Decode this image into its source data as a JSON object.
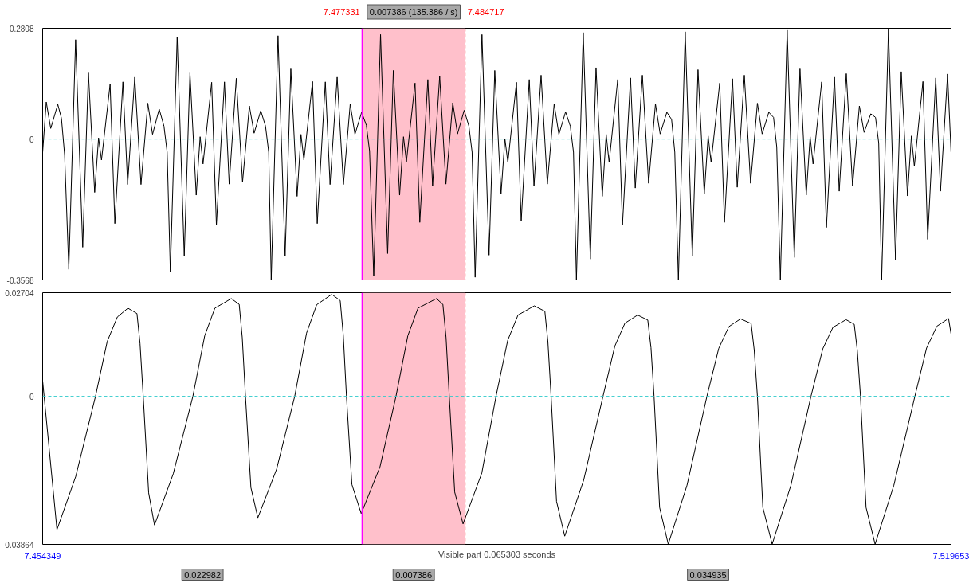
{
  "chart_data": [
    {
      "type": "line",
      "xlim": [
        7.454349,
        7.519653
      ],
      "ylim": [
        -0.3568,
        0.2808
      ],
      "yticks": [
        0.2808,
        0,
        -0.3568
      ],
      "tick_labels": "y",
      "grid": false,
      "x": [
        7.45435,
        7.45461,
        7.45493,
        7.45544,
        7.4557,
        7.45593,
        7.45623,
        7.45672,
        7.45723,
        7.45764,
        7.45809,
        7.45837,
        7.45858,
        7.4592,
        7.45954,
        7.46012,
        7.46046,
        7.46097,
        7.46142,
        7.46191,
        7.46225,
        7.46273,
        7.46307,
        7.4633,
        7.46353,
        7.46402,
        7.46453,
        7.46494,
        7.46539,
        7.46567,
        7.46588,
        7.4665,
        7.46684,
        7.46742,
        7.46776,
        7.46827,
        7.46872,
        7.46921,
        7.46955,
        7.47003,
        7.47037,
        7.4706,
        7.47078,
        7.47127,
        7.47178,
        7.47219,
        7.47264,
        7.47292,
        7.47313,
        7.47375,
        7.47409,
        7.47467,
        7.47501,
        7.47552,
        7.47597,
        7.47646,
        7.4768,
        7.47728,
        7.47762,
        7.47785,
        7.47815,
        7.47864,
        7.47915,
        7.47956,
        7.48001,
        7.48029,
        7.4805,
        7.48112,
        7.48146,
        7.48204,
        7.48238,
        7.48289,
        7.48334,
        7.48383,
        7.48417,
        7.48465,
        7.48499,
        7.48522,
        7.48544,
        7.48593,
        7.48644,
        7.48685,
        7.4873,
        7.48758,
        7.48779,
        7.48841,
        7.48875,
        7.48933,
        7.48967,
        7.49018,
        7.49063,
        7.49112,
        7.49146,
        7.49194,
        7.49228,
        7.49251,
        7.49272,
        7.49321,
        7.49372,
        7.49413,
        7.49458,
        7.49486,
        7.49507,
        7.49569,
        7.49603,
        7.49661,
        7.49695,
        7.49746,
        7.49791,
        7.4984,
        7.49874,
        7.49922,
        7.49956,
        7.49979,
        7.50005,
        7.50054,
        7.50105,
        7.50146,
        7.50191,
        7.50219,
        7.5024,
        7.50302,
        7.50336,
        7.50394,
        7.50428,
        7.50479,
        7.50524,
        7.50573,
        7.50607,
        7.50655,
        7.50689,
        7.50712,
        7.50738,
        7.50787,
        7.50838,
        7.50879,
        7.50924,
        7.50952,
        7.50973,
        7.51035,
        7.51069,
        7.51127,
        7.51161,
        7.51212,
        7.51257,
        7.51306,
        7.5134,
        7.51388,
        7.51422,
        7.51445,
        7.51466,
        7.51515,
        7.51566,
        7.51607,
        7.51652,
        7.5168,
        7.51701,
        7.51763,
        7.51797,
        7.51855,
        7.51889,
        7.5194,
        7.51965
      ],
      "series": [
        {
          "color": "#000000",
          "values": [
            -0.033,
            0.094,
            0.027,
            0.088,
            0.053,
            -0.04,
            -0.33,
            0.252,
            -0.274,
            0.168,
            -0.135,
            0.003,
            -0.053,
            0.139,
            -0.214,
            0.145,
            -0.115,
            0.157,
            -0.115,
            0.091,
            0.012,
            0.076,
            0.033,
            -0.033,
            -0.337,
            0.259,
            -0.296,
            0.168,
            -0.142,
            0.006,
            -0.063,
            0.144,
            -0.218,
            0.145,
            -0.114,
            0.154,
            -0.109,
            0.084,
            0.015,
            0.072,
            0.033,
            -0.033,
            -0.356,
            0.262,
            -0.297,
            0.178,
            -0.145,
            0.012,
            -0.053,
            0.146,
            -0.214,
            0.145,
            -0.115,
            0.157,
            -0.115,
            0.089,
            0.012,
            0.068,
            0.035,
            -0.03,
            -0.347,
            0.265,
            -0.29,
            0.174,
            -0.142,
            0.006,
            -0.057,
            0.142,
            -0.211,
            0.151,
            -0.118,
            0.159,
            -0.114,
            0.092,
            0.013,
            0.073,
            0.033,
            -0.033,
            -0.35,
            0.265,
            -0.294,
            0.174,
            -0.139,
            0.001,
            -0.059,
            0.144,
            -0.208,
            0.151,
            -0.119,
            0.162,
            -0.114,
            0.089,
            0.012,
            0.069,
            0.033,
            -0.033,
            -0.356,
            0.27,
            -0.304,
            0.181,
            -0.145,
            0.012,
            -0.059,
            0.151,
            -0.218,
            0.155,
            -0.124,
            0.162,
            -0.112,
            0.089,
            0.013,
            0.068,
            0.05,
            -0.033,
            -0.356,
            0.272,
            -0.297,
            0.176,
            -0.139,
            0.008,
            -0.059,
            0.142,
            -0.211,
            0.153,
            -0.122,
            0.162,
            -0.112,
            0.091,
            0.013,
            0.068,
            0.055,
            -0.02,
            -0.356,
            0.276,
            -0.3,
            0.178,
            -0.142,
            0.006,
            -0.063,
            0.145,
            -0.224,
            0.157,
            -0.132,
            0.166,
            -0.119,
            0.084,
            0.017,
            0.064,
            0.055,
            -0.01,
            -0.356,
            0.279,
            -0.307,
            0.171,
            -0.144,
            0.008,
            -0.069,
            0.146,
            -0.254,
            0.155,
            -0.132,
            0.165,
            -0.033
          ]
        }
      ],
      "bands": [
        {
          "axis": "x",
          "from": 7.477331,
          "to": 7.484717,
          "label": "0.007386 (135.386 / s)",
          "color": "#ffc0cb"
        }
      ],
      "ref_lines": [
        {
          "axis": "x",
          "value": 7.477331,
          "label": "7.477331",
          "color": "#ff00ff",
          "line_style": "solid"
        },
        {
          "axis": "x",
          "value": 7.484717,
          "label": "7.484717",
          "color": "#ff0000",
          "line_style": "dashed"
        },
        {
          "axis": "y",
          "value": 0,
          "color": "#33cccc",
          "line_style": "dashed"
        }
      ]
    },
    {
      "type": "line",
      "xlim": [
        7.454349,
        7.519653
      ],
      "xticks": [
        7.454349,
        7.519653
      ],
      "xlabel": "Visible part 0.065303 seconds",
      "ylim": [
        -0.03864,
        0.02704
      ],
      "yticks": [
        0.02704,
        0,
        -0.03864
      ],
      "grid": false,
      "x": [
        7.45435,
        7.45538,
        7.45673,
        7.45815,
        7.45899,
        7.45972,
        7.46048,
        7.46113,
        7.46135,
        7.46158,
        7.46197,
        7.46239,
        7.46374,
        7.46515,
        7.466,
        7.46673,
        7.46791,
        7.46848,
        7.4687,
        7.46893,
        7.46932,
        7.46982,
        7.47117,
        7.47247,
        7.47332,
        7.47405,
        7.47513,
        7.47574,
        7.47596,
        7.47619,
        7.47658,
        7.47725,
        7.4786,
        7.47975,
        7.4806,
        7.48133,
        7.48266,
        7.48312,
        7.48335,
        7.48358,
        7.48397,
        7.48457,
        7.48592,
        7.48694,
        7.48778,
        7.48852,
        7.48969,
        7.49045,
        7.49067,
        7.4909,
        7.49129,
        7.49188,
        7.49324,
        7.49463,
        7.49548,
        7.49621,
        7.49712,
        7.49785,
        7.49808,
        7.4983,
        7.4987,
        7.49932,
        7.50067,
        7.5021,
        7.50295,
        7.50368,
        7.50452,
        7.50528,
        7.5055,
        7.50573,
        7.50612,
        7.50679,
        7.50814,
        7.50958,
        7.51043,
        7.51116,
        7.5121,
        7.51269,
        7.51291,
        7.51314,
        7.51354,
        7.51419,
        7.51554,
        7.51705,
        7.51789,
        7.51863,
        7.51947,
        7.51965
      ],
      "series": [
        {
          "color": "#000000",
          "values": [
            0.004,
            -0.0348,
            -0.0209,
            0,
            0.0143,
            0.0207,
            0.023,
            0.0216,
            0.0138,
            0,
            -0.0252,
            -0.0336,
            -0.0202,
            0,
            0.0158,
            0.023,
            0.0255,
            0.024,
            0.0153,
            0,
            -0.0238,
            -0.0317,
            -0.019,
            0,
            0.0165,
            0.0239,
            0.0266,
            0.025,
            0.016,
            0,
            -0.023,
            -0.0306,
            -0.0184,
            0,
            0.0158,
            0.023,
            0.0255,
            0.024,
            0.0153,
            0,
            -0.025,
            -0.0333,
            -0.02,
            0,
            0.0146,
            0.0212,
            0.0236,
            0.0222,
            0.0142,
            0,
            -0.0274,
            -0.0365,
            -0.0219,
            0,
            0.0131,
            0.0191,
            0.0212,
            0.0199,
            0.0127,
            0,
            -0.029,
            -0.0386,
            -0.0232,
            0,
            0.0125,
            0.0182,
            0.0202,
            0.019,
            0.0121,
            0,
            -0.029,
            -0.0386,
            -0.0232,
            0,
            0.0124,
            0.018,
            0.02,
            0.0188,
            0.012,
            0,
            -0.029,
            -0.0386,
            -0.0232,
            0,
            0.0126,
            0.0183,
            0.0203,
            0.0163
          ]
        }
      ],
      "bands": [
        {
          "axis": "x",
          "from": 7.477331,
          "to": 7.484717,
          "color": "#ffc0cb"
        }
      ],
      "ref_lines": [
        {
          "axis": "x",
          "value": 7.477331,
          "color": "#ff00ff",
          "line_style": "solid"
        },
        {
          "axis": "x",
          "value": 7.484717,
          "color": "#ff0000",
          "line_style": "dashed"
        },
        {
          "axis": "y",
          "value": 0,
          "color": "#33cccc",
          "line_style": "dashed"
        }
      ],
      "annotations": [
        "0.022982",
        "0.007386",
        "0.034935"
      ]
    }
  ]
}
